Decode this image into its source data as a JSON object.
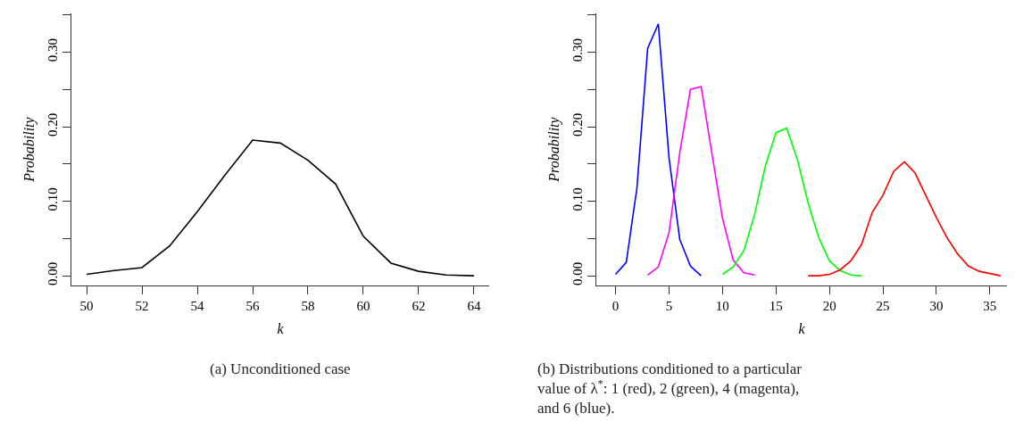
{
  "chart_data": [
    {
      "type": "line",
      "xlabel": "k",
      "ylabel": "Probability",
      "annotations": [
        "(a) Unconditioned case"
      ],
      "x": [
        50,
        51,
        52,
        53,
        54,
        55,
        56,
        57,
        58,
        59,
        60,
        61,
        62,
        63,
        64
      ],
      "values": [
        0.002,
        0.007,
        0.011,
        0.04,
        0.086,
        0.135,
        0.182,
        0.178,
        0.155,
        0.123,
        0.053,
        0.017,
        0.006,
        0.001,
        0.0
      ],
      "color": "#000000",
      "xlim": [
        49.45,
        64.55
      ],
      "xticks": [
        50,
        52,
        54,
        56,
        58,
        60,
        62,
        64
      ],
      "ylim": [
        -0.013,
        0.352
      ],
      "yticks": [
        {
          "value": 0,
          "label": "0.00"
        },
        {
          "value": 0.05,
          "label": null
        },
        {
          "value": 0.1,
          "label": "0.10"
        },
        {
          "value": 0.15,
          "label": null
        },
        {
          "value": 0.2,
          "label": "0.20"
        },
        {
          "value": 0.25,
          "label": null
        },
        {
          "value": 0.3,
          "label": "0.30"
        },
        {
          "value": 0.35,
          "label": null
        }
      ]
    },
    {
      "type": "line",
      "xlabel": "k",
      "ylabel": "Probability",
      "annotations": [
        "(b) Distributions conditioned to a particular value of λ$^{*}$: 1 (red), 2 (green), 4 (magenta), and 6 (blue)."
      ],
      "series": [
        {
          "color": "#0000ff",
          "x": [
            0,
            1,
            2,
            3,
            4,
            5,
            6,
            7,
            8
          ],
          "values": [
            0.002,
            0.018,
            0.118,
            0.305,
            0.338,
            0.158,
            0.049,
            0.013,
            0.0
          ]
        },
        {
          "color": "#ff00ff",
          "x": [
            3,
            4,
            5,
            6,
            7,
            8,
            9,
            10,
            11,
            12,
            13
          ],
          "values": [
            0.001,
            0.012,
            0.058,
            0.165,
            0.25,
            0.254,
            0.165,
            0.077,
            0.021,
            0.004,
            0.001
          ]
        },
        {
          "color": "#00ff00",
          "x": [
            10,
            11,
            12,
            13,
            14,
            15,
            16,
            17,
            18,
            19,
            20,
            21,
            22,
            23
          ],
          "values": [
            0.002,
            0.012,
            0.034,
            0.082,
            0.147,
            0.192,
            0.198,
            0.156,
            0.098,
            0.051,
            0.02,
            0.007,
            0.001,
            0.0
          ]
        },
        {
          "color": "#ff0000",
          "x": [
            18,
            19,
            20,
            21,
            22,
            23,
            24,
            25,
            26,
            27,
            28,
            29,
            30,
            31,
            32,
            33,
            34,
            35,
            36
          ],
          "values": [
            0.0,
            0.0,
            0.002,
            0.008,
            0.02,
            0.042,
            0.085,
            0.108,
            0.14,
            0.153,
            0.138,
            0.108,
            0.078,
            0.051,
            0.029,
            0.013,
            0.006,
            0.003,
            0.0
          ]
        }
      ],
      "xlim": [
        -1.8,
        36.6
      ],
      "xticks": [
        0,
        5,
        10,
        15,
        20,
        25,
        30,
        35
      ],
      "ylim": [
        -0.013,
        0.352
      ],
      "yticks": [
        {
          "value": 0,
          "label": "0.00"
        },
        {
          "value": 0.05,
          "label": null
        },
        {
          "value": 0.1,
          "label": "0.10"
        },
        {
          "value": 0.15,
          "label": null
        },
        {
          "value": 0.2,
          "label": "0.20"
        },
        {
          "value": 0.25,
          "label": null
        },
        {
          "value": 0.3,
          "label": "0.30"
        },
        {
          "value": 0.35,
          "label": null
        }
      ]
    }
  ]
}
